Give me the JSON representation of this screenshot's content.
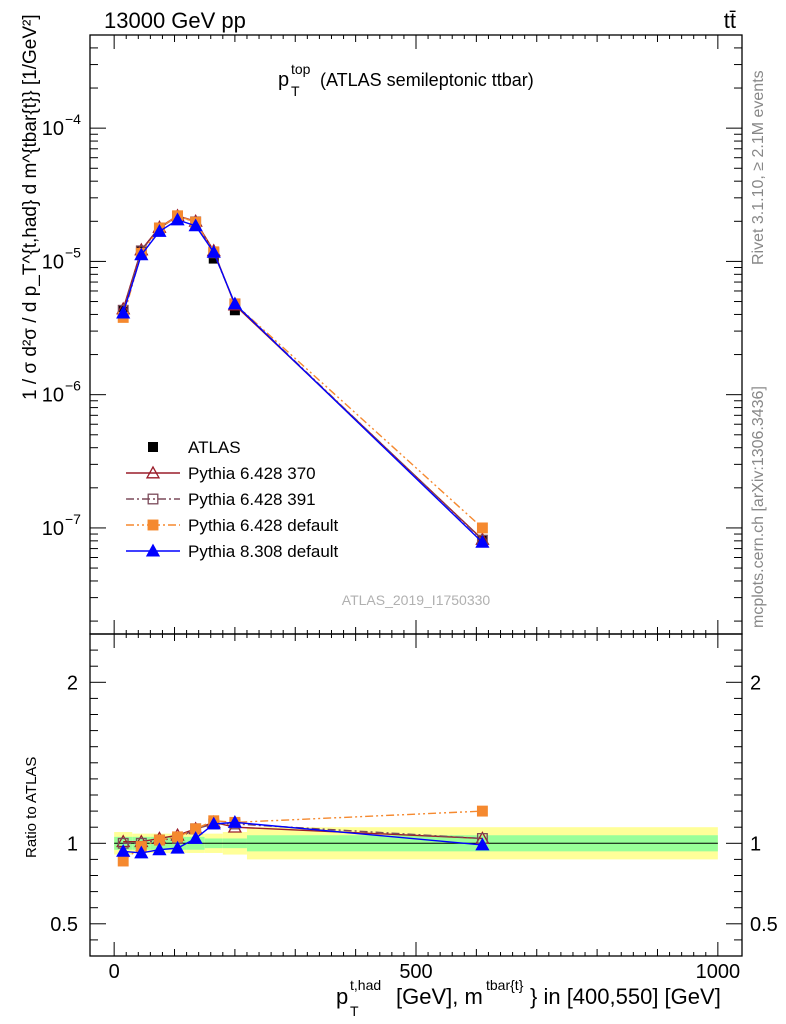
{
  "header": {
    "left": "13000 GeV pp",
    "right": "tt̄"
  },
  "side_labels": {
    "rivet": "Rivet 3.1.10, ≥ 2.1M events",
    "mcplots": "mcplots.cern.ch [arXiv:1306.3436]"
  },
  "chart_data": {
    "type": "line",
    "title": "(ATLAS semileptonic ttbar)",
    "title_symbol": "p",
    "title_symbol_sup": "top",
    "title_symbol_sub": "T",
    "watermark": "ATLAS_2019_I1750330",
    "xlabel": "[GeV], m",
    "xlabel_pre": "p",
    "xlabel_pre_sup": "t,had",
    "xlabel_pre_sub": "T",
    "xlabel_sup2": "tbar{t}",
    "xlabel_post": "} in [400,550] [GeV]",
    "ylabel": "1 / σ d²σ / d p_T^{t,had} d m^{tbar{t}} [1/GeV²]",
    "ratio_ylabel": "Ratio to ATLAS",
    "xlim": [
      -40,
      1040
    ],
    "ylim": [
      1.6e-08,
      0.0005
    ],
    "yscale": "log",
    "ratio_ylim": [
      0.3,
      2.3
    ],
    "x_ticks": [
      0,
      500,
      1000
    ],
    "y_ticks": [
      {
        "value": 1e-07,
        "label": "10",
        "exp": "−7"
      },
      {
        "value": 1e-06,
        "label": "10",
        "exp": "−6"
      },
      {
        "value": 1e-05,
        "label": "10",
        "exp": "−5"
      },
      {
        "value": 0.0001,
        "label": "10",
        "exp": "−4"
      }
    ],
    "ratio_ticks": [
      0.5,
      1,
      2
    ],
    "bins": [
      [
        0,
        30
      ],
      [
        30,
        60
      ],
      [
        60,
        90
      ],
      [
        90,
        120
      ],
      [
        120,
        150
      ],
      [
        150,
        180
      ],
      [
        180,
        220
      ],
      [
        220,
        1000
      ]
    ],
    "data": {
      "name": "ATLAS",
      "x": [
        15,
        45,
        75,
        105,
        135,
        165,
        200,
        610
      ],
      "y": [
        4.3e-06,
        1.2e-05,
        1.75e-05,
        2.1e-05,
        1.85e-05,
        1.05e-05,
        4.3e-06,
        8e-08
      ],
      "band_inner": [
        0.04,
        0.04,
        0.04,
        0.04,
        0.04,
        0.03,
        0.03,
        0.05
      ],
      "band_outer": [
        0.07,
        0.06,
        0.06,
        0.06,
        0.06,
        0.06,
        0.07,
        0.1
      ]
    },
    "series": [
      {
        "name": "Pythia 6.428 370",
        "color": "#9a1d2a",
        "marker": "triangle-open",
        "dash": "",
        "x": [
          15,
          45,
          75,
          105,
          135,
          165,
          200,
          610
        ],
        "y": [
          4.4e-06,
          1.22e-05,
          1.8e-05,
          2.2e-05,
          2e-05,
          1.2e-05,
          4.7e-06,
          8.2e-08
        ],
        "ratio": [
          1.01,
          1.01,
          1.03,
          1.05,
          1.09,
          1.13,
          1.1,
          1.03
        ]
      },
      {
        "name": "Pythia 6.428 391",
        "color": "#7b4a5a",
        "marker": "square-open",
        "dash": "8,3,2,3",
        "x": [
          15,
          45,
          75,
          105,
          135,
          165,
          200,
          610
        ],
        "y": [
          4.3e-06,
          1.2e-05,
          1.78e-05,
          2.17e-05,
          1.98e-05,
          1.16e-05,
          4.8e-06,
          8.1e-08
        ],
        "ratio": [
          1.0,
          1.0,
          1.02,
          1.03,
          1.09,
          1.12,
          1.12,
          1.03
        ]
      },
      {
        "name": "Pythia 6.428 default",
        "color": "#f5892f",
        "marker": "square-filled",
        "dash": "8,3,2,3,2,3",
        "x": [
          15,
          45,
          75,
          105,
          135,
          165,
          200,
          610
        ],
        "y": [
          3.8e-06,
          1.15e-05,
          1.78e-05,
          2.2e-05,
          1.97e-05,
          1.18e-05,
          4.8e-06,
          1e-07
        ],
        "ratio": [
          0.89,
          0.98,
          1.02,
          1.04,
          1.09,
          1.14,
          1.13,
          1.2
        ]
      },
      {
        "name": "Pythia 8.308 default",
        "color": "#0000ff",
        "marker": "triangle-filled",
        "dash": "",
        "x": [
          15,
          45,
          75,
          105,
          135,
          165,
          200,
          610
        ],
        "y": [
          4.1e-06,
          1.12e-05,
          1.68e-05,
          2.05e-05,
          1.85e-05,
          1.17e-05,
          4.8e-06,
          7.8e-08
        ],
        "ratio": [
          0.95,
          0.94,
          0.96,
          0.97,
          1.03,
          1.12,
          1.13,
          0.99
        ]
      }
    ]
  }
}
